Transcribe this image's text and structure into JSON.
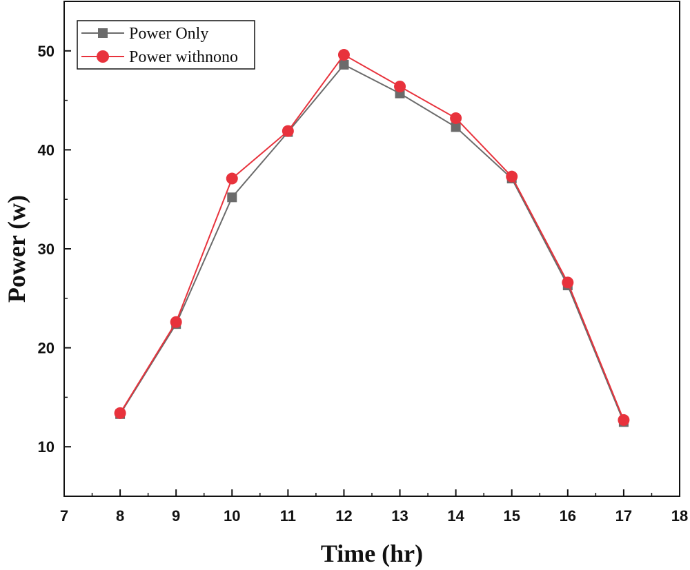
{
  "chart_data": {
    "type": "line",
    "title": "",
    "xlabel": "Time (hr)",
    "ylabel": "Power (w)",
    "xlim": [
      7,
      18
    ],
    "ylim": [
      5,
      55
    ],
    "x_ticks": [
      7,
      8,
      9,
      10,
      11,
      12,
      13,
      14,
      15,
      16,
      17,
      18
    ],
    "y_ticks": [
      10,
      20,
      30,
      40,
      50
    ],
    "x": [
      8,
      9,
      10,
      11,
      12,
      13,
      14,
      15,
      16,
      17
    ],
    "series": [
      {
        "name": "Power Only",
        "marker": "square",
        "color": "#6b6b6b",
        "values": [
          13.3,
          22.4,
          35.2,
          41.8,
          48.6,
          45.7,
          42.3,
          37.1,
          26.3,
          12.5
        ]
      },
      {
        "name": "Power withnono",
        "marker": "circle",
        "color": "#e8323c",
        "values": [
          13.4,
          22.6,
          37.1,
          41.9,
          49.6,
          46.4,
          43.2,
          37.3,
          26.6,
          12.7
        ]
      }
    ],
    "legend_position": "top-left",
    "grid": false
  }
}
